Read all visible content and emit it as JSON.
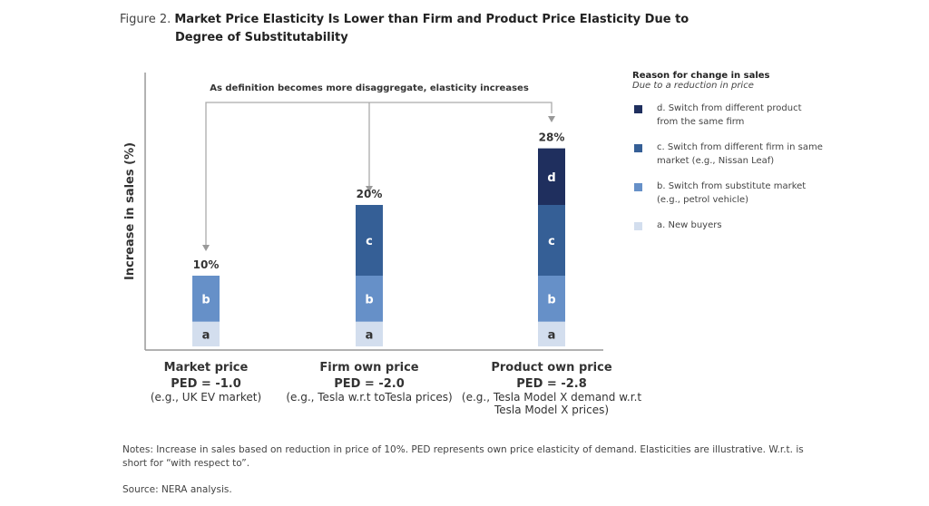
{
  "figure_label": "Figure 2.",
  "title_line1": "Market Price Elasticity Is Lower than Firm and Product Price Elasticity Due to",
  "title_line2": "Degree of Substitutability",
  "chart_data": {
    "type": "bar",
    "stacked": true,
    "ylabel": "Increase in sales (%)",
    "annotation": "As definition becomes more disaggregate, elasticity increases",
    "categories": [
      {
        "name": "Market price",
        "ped": "PED = -1.0",
        "example": "(e.g., UK EV market)"
      },
      {
        "name": "Firm own price",
        "ped": "PED = -2.0",
        "example": "(e.g., Tesla w.r.t toTesla prices)"
      },
      {
        "name": "Product own price",
        "ped": "PED = -2.8",
        "example": "(e.g., Tesla Model X demand w.r.t Tesla Model X prices)"
      }
    ],
    "totals": [
      "10%",
      "20%",
      "28%"
    ],
    "total_values": [
      10,
      20,
      28
    ],
    "series": [
      {
        "key": "a",
        "name": "a.  New buyers",
        "color": "#d3deee",
        "text_color": "#333333",
        "values": [
          3.5,
          3.5,
          3.5
        ]
      },
      {
        "key": "b",
        "name": "b.  Switch from substitute market (e.g., petrol vehicle)",
        "color": "#6690c8",
        "text_color": "#ffffff",
        "values": [
          6.5,
          6.5,
          6.5
        ]
      },
      {
        "key": "c",
        "name": "c.  Switch from different firm in same market (e.g., Nissan Leaf)",
        "color": "#355f96",
        "text_color": "#ffffff",
        "values": [
          0,
          10,
          10
        ]
      },
      {
        "key": "d",
        "name": "d.  Switch from different product from the same firm",
        "color": "#1f2f5e",
        "text_color": "#ffffff",
        "values": [
          0,
          0,
          8
        ]
      }
    ],
    "legend": {
      "title": "Reason for change in sales",
      "subtitle": "Due to a reduction in price",
      "placement": "right"
    },
    "ylim": [
      0,
      34
    ],
    "grid": false
  },
  "notes": "Notes: Increase in sales based on reduction in price of 10%. PED represents own price elasticity of demand. Elasticities are illustrative. W.r.t. is short for “with respect to”.",
  "source": "Source: NERA analysis."
}
